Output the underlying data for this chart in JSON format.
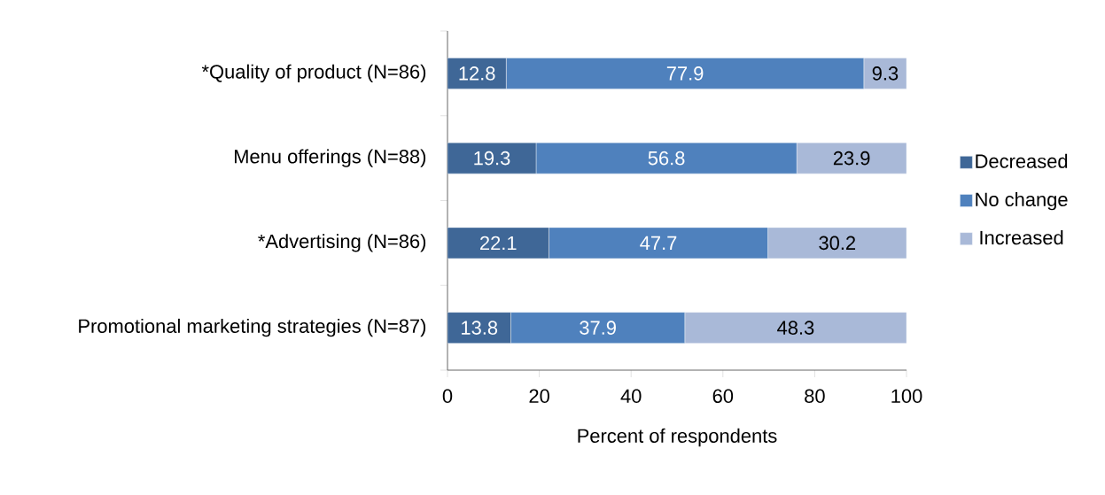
{
  "chart_data": {
    "type": "bar",
    "orientation": "horizontal",
    "stacked": true,
    "data_labels": true,
    "legend": "right",
    "xlabel": "Percent of respondents",
    "categories": [
      "*Quality of product (N=86)",
      "Menu offerings (N=88)",
      "*Advertising (N=86)",
      "Promotional marketing strategies (N=87)"
    ],
    "series": [
      {
        "name": "Decreased",
        "color": "#3f6797",
        "values": [
          12.8,
          19.3,
          22.1,
          13.8
        ]
      },
      {
        "name": "No change",
        "color": "#4f81bd",
        "values": [
          77.9,
          56.8,
          47.7,
          37.9
        ]
      },
      {
        "name": "Increased",
        "color": "#a9b9d8",
        "values": [
          9.3,
          23.9,
          30.2,
          48.3
        ]
      }
    ],
    "xlim": [
      0,
      100
    ],
    "xticks": [
      0,
      20,
      40,
      60,
      80,
      100
    ]
  }
}
